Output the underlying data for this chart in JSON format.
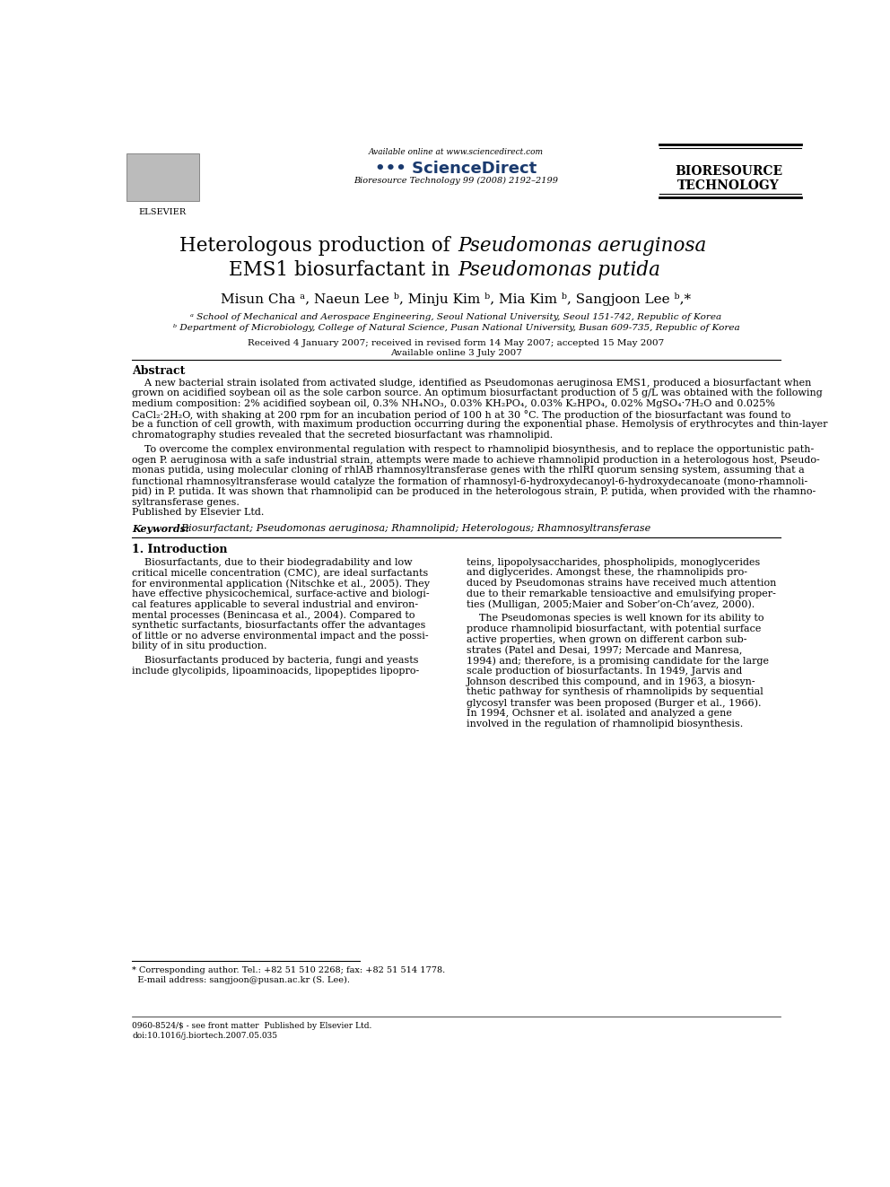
{
  "page_width": 9.92,
  "page_height": 13.23,
  "bg_color": "#ffffff",
  "header_available_online": "Available online at www.sciencedirect.com",
  "header_sciencedirect": "ScienceDirect",
  "header_journal": "Bioresource Technology 99 (2008) 2192–2199",
  "header_journal_right": "BIORESOURCE\nTECHNOLOGY",
  "title_line1_normal": "Heterologous production of ",
  "title_line1_italic": "Pseudomonas aeruginosa",
  "title_line2_normal": "EMS1 biosurfactant in ",
  "title_line2_italic": "Pseudomonas putida",
  "authors": "Misun Cha ᵃ, Naeun Lee ᵇ, Minju Kim ᵇ, Mia Kim ᵇ, Sangjoon Lee ᵇ,*",
  "affil_a": "ᵃ School of Mechanical and Aerospace Engineering, Seoul National University, Seoul 151-742, Republic of Korea",
  "affil_b": "ᵇ Department of Microbiology, College of Natural Science, Pusan National University, Busan 609-735, Republic of Korea",
  "received": "Received 4 January 2007; received in revised form 14 May 2007; accepted 15 May 2007",
  "available_online2": "Available online 3 July 2007",
  "abstract_header": "Abstract",
  "abstract_p1_line1": "    A new bacterial strain isolated from activated sludge, identified as Pseudomonas aeruginosa EMS1, produced a biosurfactant when",
  "abstract_p1_line2": "grown on acidified soybean oil as the sole carbon source. An optimum biosurfactant production of 5 g/L was obtained with the following",
  "abstract_p1_line3": "medium composition: 2% acidified soybean oil, 0.3% NH₄NO₃, 0.03% KH₂PO₄, 0.03% K₂HPO₄, 0.02% MgSO₄·7H₂O and 0.025%",
  "abstract_p1_line4": "CaCl₂·2H₂O, with shaking at 200 rpm for an incubation period of 100 h at 30 °C. The production of the biosurfactant was found to",
  "abstract_p1_line5": "be a function of cell growth, with maximum production occurring during the exponential phase. Hemolysis of erythrocytes and thin-layer",
  "abstract_p1_line6": "chromatography studies revealed that the secreted biosurfactant was rhamnolipid.",
  "abstract_p2_line1": "    To overcome the complex environmental regulation with respect to rhamnolipid biosynthesis, and to replace the opportunistic path-",
  "abstract_p2_line2": "ogen P. aeruginosa with a safe industrial strain, attempts were made to achieve rhamnolipid production in a heterologous host, Pseudo-",
  "abstract_p2_line3": "monas putida, using molecular cloning of rhlAB rhamnosyltransferase genes with the rhlRI quorum sensing system, assuming that a",
  "abstract_p2_line4": "functional rhamnosyltransferase would catalyze the formation of rhamnosyl-6-hydroxydecanoyl-6-hydroxydecanoate (mono-rhamnoli-",
  "abstract_p2_line5": "pid) in P. putida. It was shown that rhamnolipid can be produced in the heterologous strain, P. putida, when provided with the rhamno-",
  "abstract_p2_line6": "syltransferase genes.",
  "abstract_published": "Published by Elsevier Ltd.",
  "keywords": "Keywords:  Biosurfactant; Pseudomonas aeruginosa; Rhamnolipid; Heterologous; Rhamnosyltransferase",
  "section1_header": "1. Introduction",
  "intro_col1_p1_l1": "    Biosurfactants, due to their biodegradability and low",
  "intro_col1_p1_l2": "critical micelle concentration (CMC), are ideal surfactants",
  "intro_col1_p1_l3": "for environmental application (Nitschke et al., 2005). They",
  "intro_col1_p1_l4": "have effective physicochemical, surface-active and biologi-",
  "intro_col1_p1_l5": "cal features applicable to several industrial and environ-",
  "intro_col1_p1_l6": "mental processes (Benincasa et al., 2004). Compared to",
  "intro_col1_p1_l7": "synthetic surfactants, biosurfactants offer the advantages",
  "intro_col1_p1_l8": "of little or no adverse environmental impact and the possi-",
  "intro_col1_p1_l9": "bility of in situ production.",
  "intro_col1_p2_l1": "    Biosurfactants produced by bacteria, fungi and yeasts",
  "intro_col1_p2_l2": "include glycolipids, lipoaminoacids, lipopeptides lipopro-",
  "intro_col2_p1_l1": "teins, lipopolysaccharides, phospholipids, monoglycerides",
  "intro_col2_p1_l2": "and diglycerides. Amongst these, the rhamnolipids pro-",
  "intro_col2_p1_l3": "duced by Pseudomonas strains have received much attention",
  "intro_col2_p1_l4": "due to their remarkable tensioactive and emulsifying proper-",
  "intro_col2_p1_l5": "ties (Mulligan, 2005;Maier and Sober’on-Ch’avez, 2000).",
  "intro_col2_p2_l1": "    The Pseudomonas species is well known for its ability to",
  "intro_col2_p2_l2": "produce rhamnolipid biosurfactant, with potential surface",
  "intro_col2_p2_l3": "active properties, when grown on different carbon sub-",
  "intro_col2_p2_l4": "strates (Patel and Desai, 1997; Mercade and Manresa,",
  "intro_col2_p2_l5": "1994) and; therefore, is a promising candidate for the large",
  "intro_col2_p2_l6": "scale production of biosurfactants. In 1949, Jarvis and",
  "intro_col2_p2_l7": "Johnson described this compound, and in 1963, a biosyn-",
  "intro_col2_p2_l8": "thetic pathway for synthesis of rhamnolipids by sequential",
  "intro_col2_p2_l9": "glycosyl transfer was been proposed (Burger et al., 1966).",
  "intro_col2_p2_l10": "In 1994, Ochsner et al. isolated and analyzed a gene",
  "intro_col2_p2_l11": "involved in the regulation of rhamnolipid biosynthesis.",
  "footnote_line1": "* Corresponding author. Tel.: +82 51 510 2268; fax: +82 51 514 1778.",
  "footnote_line2": "  E-mail address: sangjoon@pusan.ac.kr (S. Lee).",
  "issn_line1": "0960-8524/$ - see front matter  Published by Elsevier Ltd.",
  "issn_line2": "doi:10.1016/j.biortech.2007.05.035"
}
